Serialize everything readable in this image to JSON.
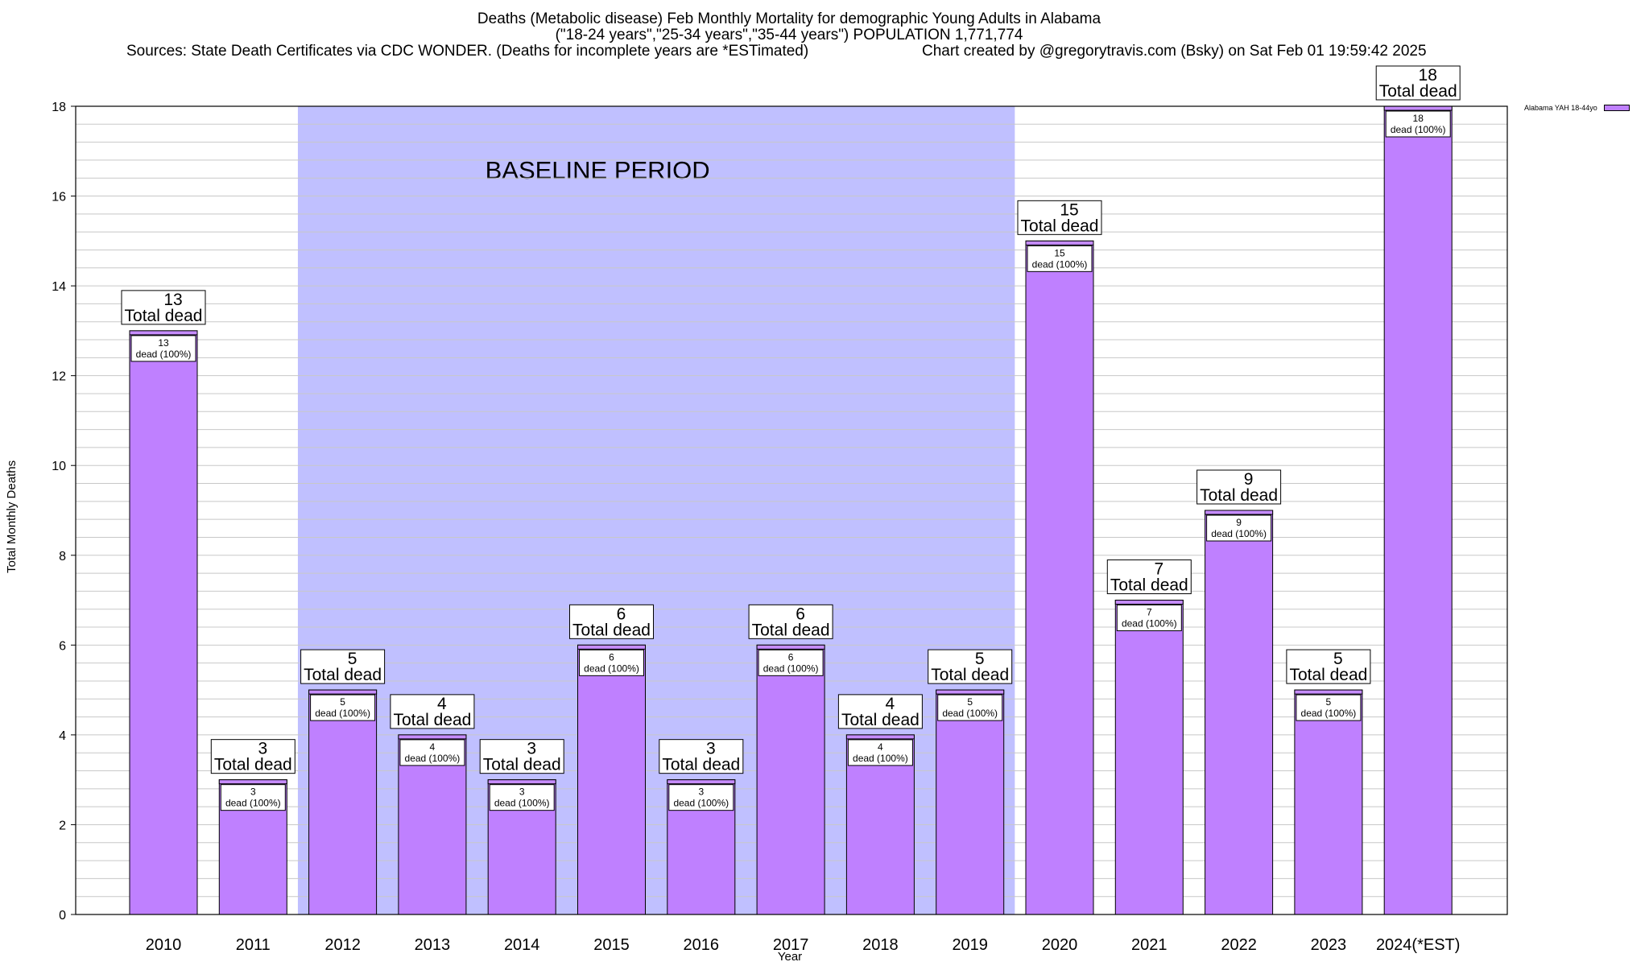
{
  "chart_data": {
    "type": "bar",
    "title": "Deaths (Metabolic disease) Feb Monthly Mortality for demographic Young Adults in Alabama",
    "subtitle": "(\"18-24 years\",\"25-34 years\",\"35-44 years\") POPULATION 1,771,774",
    "sources": "Sources: State Death Certificates via CDC WONDER. (Deaths for incomplete years are *ESTimated)",
    "credit": "Chart created by @gregorytravis.com (Bsky) on Sat Feb 01 19:59:42 2025",
    "xlabel": "Year",
    "ylabel": "Total Monthly Deaths",
    "ylim": [
      0,
      18
    ],
    "yticks": [
      "0",
      "2",
      "4",
      "6",
      "8",
      "10",
      "12",
      "14",
      "16",
      "18"
    ],
    "categories": [
      "2010",
      "2011",
      "2012",
      "2013",
      "2014",
      "2015",
      "2016",
      "2017",
      "2018",
      "2019",
      "2020",
      "2021",
      "2022",
      "2023",
      "2024(*EST)"
    ],
    "series": [
      {
        "name": "Alabama YAH 18-44yo",
        "values": [
          13,
          3,
          5,
          4,
          3,
          6,
          3,
          6,
          4,
          5,
          15,
          7,
          9,
          5,
          18
        ]
      }
    ],
    "total_label_suffix": "Total dead",
    "inner_label_suffix": "dead (100%)",
    "baseline_label": "BASELINE PERIOD",
    "baseline_range": [
      "2012",
      "2019"
    ],
    "grid": true,
    "legend_position": "top-right",
    "colors": {
      "bar": "#bf80ff",
      "bar_cap": "#c68cff",
      "baseline": "#c0c0ff",
      "grid": "#c8c8c8"
    }
  }
}
